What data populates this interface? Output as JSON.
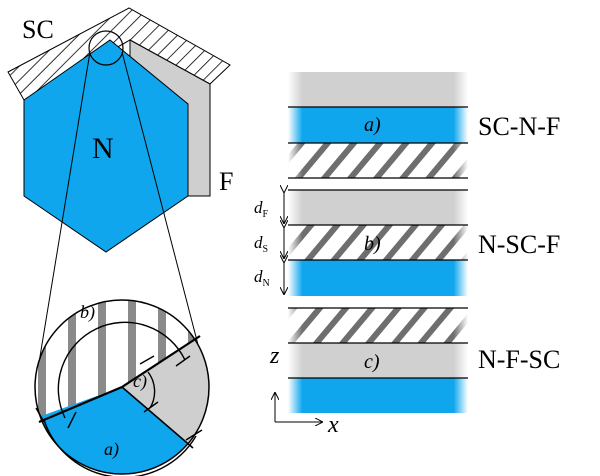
{
  "colors": {
    "normal_metal": "#0fa6ee",
    "ferromagnet": "#cfcfcf",
    "ferromagnet_edge": "#808080",
    "hatch": "#000000"
  },
  "crystal": {
    "sc_label": "SC",
    "n_label": "N",
    "f_label": "F"
  },
  "zoom": {
    "label_a": "a)",
    "label_b": "b)",
    "label_c": "c)"
  },
  "stacks": [
    {
      "name": "SC-N-F",
      "layer_label": "a)"
    },
    {
      "name": "N-SC-F",
      "layer_label": "b)"
    },
    {
      "name": "N-F-SC",
      "layer_label": "c)"
    }
  ],
  "thickness": {
    "dF_main": "d",
    "dF_sub": "F",
    "dS_main": "d",
    "dS_sub": "S",
    "dN_main": "d",
    "dN_sub": "N"
  },
  "axes": {
    "z": "z",
    "x": "x"
  }
}
